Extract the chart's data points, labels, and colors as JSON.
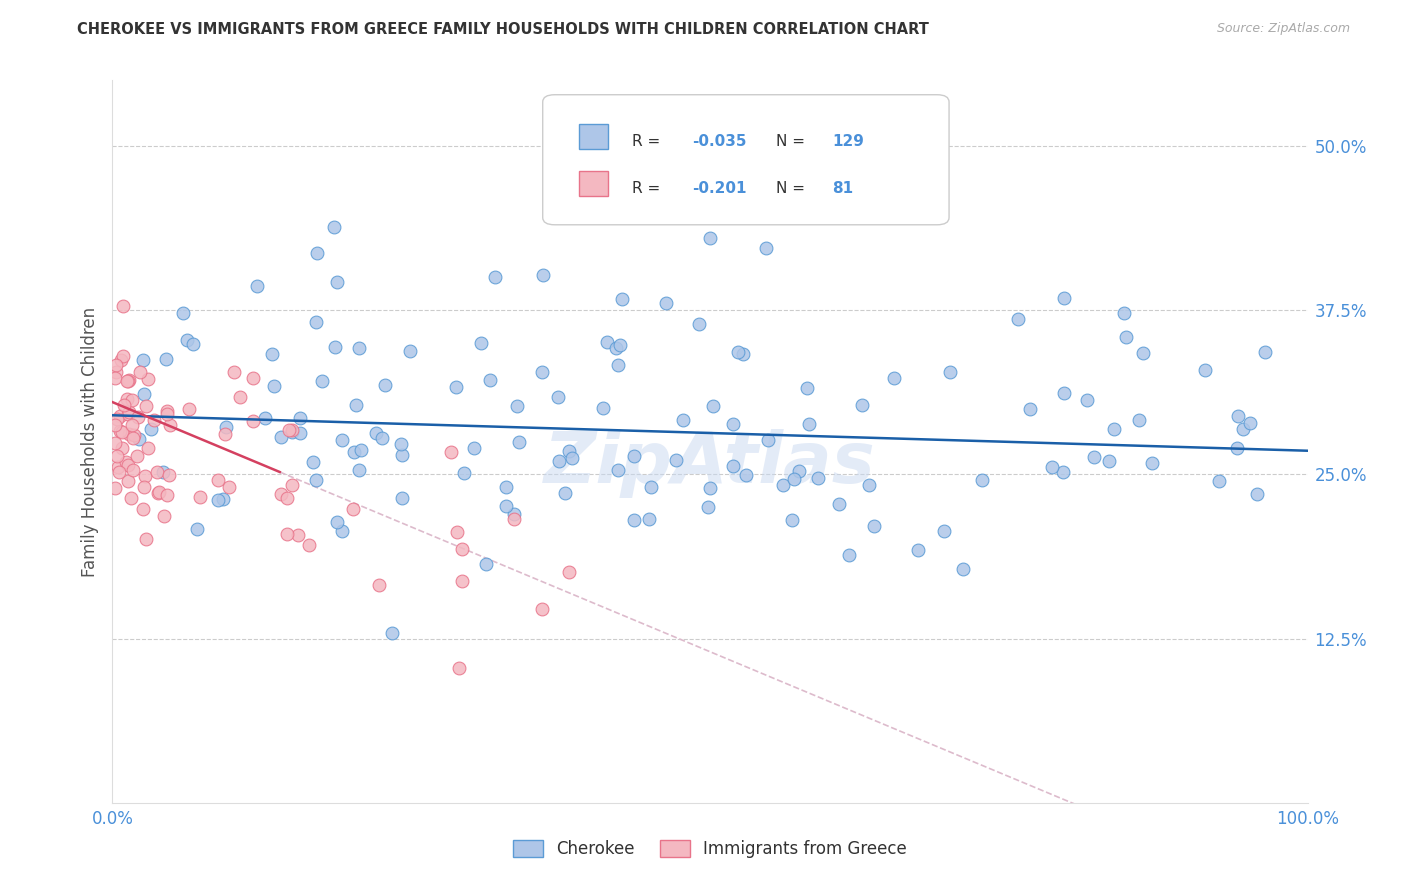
{
  "title": "CHEROKEE VS IMMIGRANTS FROM GREECE FAMILY HOUSEHOLDS WITH CHILDREN CORRELATION CHART",
  "source": "Source: ZipAtlas.com",
  "ylabel": "Family Households with Children",
  "xlim": [
    0,
    100
  ],
  "ylim": [
    0,
    55
  ],
  "ytick_vals": [
    0,
    12.5,
    25.0,
    37.5,
    50.0
  ],
  "ytick_labels": [
    "",
    "12.5%",
    "25.0%",
    "37.5%",
    "50.0%"
  ],
  "xtick_vals": [
    0,
    100
  ],
  "xtick_labels": [
    "0.0%",
    "100.0%"
  ],
  "grid_color": "#cccccc",
  "background_color": "#ffffff",
  "cherokee_color": "#aec6e8",
  "cherokee_edge_color": "#5b9bd5",
  "greece_color": "#f4b8c1",
  "greece_edge_color": "#e8748a",
  "cherokee_line_color": "#1a5fa8",
  "greece_line_color": "#d44060",
  "greece_dash_color": "#ddbbcc",
  "cherokee_R": -0.035,
  "cherokee_N": 129,
  "greece_R": -0.201,
  "greece_N": 81,
  "watermark_color": "#c8d8f0",
  "tick_color": "#4a90d9",
  "label_color": "#555555",
  "source_color": "#aaaaaa",
  "legend_text_color": "#4a90d9",
  "legend_label_color": "#333333"
}
